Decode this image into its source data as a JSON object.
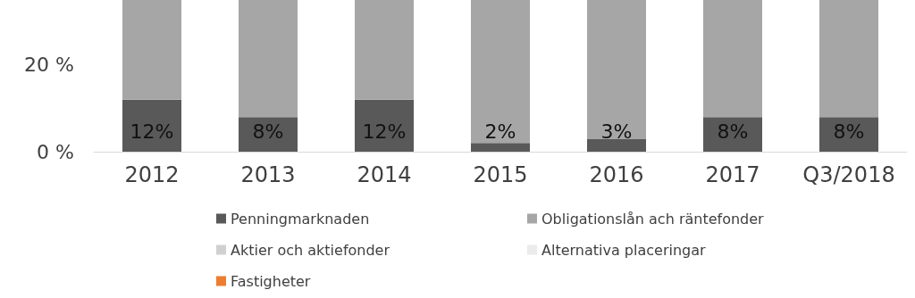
{
  "chart_data": {
    "type": "bar",
    "stacked": true,
    "categories": [
      "2012",
      "2013",
      "2014",
      "2015",
      "2016",
      "2017",
      "Q3/2018"
    ],
    "series": [
      {
        "name": "Penningmarknaden",
        "color": "#595959",
        "values": [
          12,
          8,
          12,
          2,
          3,
          8,
          8
        ],
        "value_labels": [
          "12%",
          "8%",
          "12%",
          "2%",
          "3%",
          "8%",
          "8%"
        ]
      },
      {
        "name": "Obligationslån ach räntefonder",
        "color": "#a6a6a6",
        "values": [
          23,
          27,
          23,
          33,
          32,
          27,
          27
        ]
      },
      {
        "name": "Aktier och aktiefonder",
        "color": "#d0d0d0",
        "values": [
          null,
          null,
          null,
          null,
          null,
          null,
          null
        ]
      },
      {
        "name": "Alternativa placeringar",
        "color": "#ebebeb",
        "values": [
          null,
          null,
          null,
          null,
          null,
          null,
          null
        ]
      },
      {
        "name": "Fastigheter",
        "color": "#ed7d31",
        "values": [
          null,
          null,
          null,
          null,
          null,
          null,
          null
        ]
      }
    ],
    "ylim": [
      0,
      35
    ],
    "yticks": [
      {
        "value": 0,
        "label": "0 %"
      },
      {
        "value": 20,
        "label": "20 %"
      }
    ],
    "grid": false,
    "legend": "bottom"
  }
}
